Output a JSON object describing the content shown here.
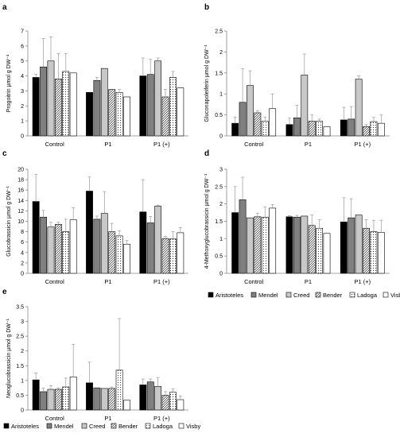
{
  "legend": {
    "items": [
      {
        "name": "Aristoteles",
        "fill": "#000000",
        "pattern": "solid"
      },
      {
        "name": "Mendel",
        "fill": "#808080",
        "pattern": "solid"
      },
      {
        "name": "Creed",
        "fill": "#c8c8c8",
        "pattern": "solid"
      },
      {
        "name": "Bender",
        "fill": "#ffffff",
        "pattern": "diagonal"
      },
      {
        "name": "Ladoga",
        "fill": "#ffffff",
        "pattern": "dots"
      },
      {
        "name": "Visby",
        "fill": "#ffffff",
        "pattern": "none"
      }
    ]
  },
  "chart_data": [
    {
      "panel": "a",
      "type": "bar",
      "ylabel": "Progoitrin µmol g DW⁻¹",
      "categories": [
        "Control",
        "P1",
        "P1 (+)"
      ],
      "ylim": [
        0,
        7
      ],
      "yticks": [
        0,
        1,
        2,
        3,
        4,
        5,
        6,
        7
      ],
      "tick_decimals": 0,
      "grid": false,
      "legend": "none",
      "series": [
        {
          "name": "Aristoteles",
          "values": [
            3.9,
            2.9,
            4.0
          ],
          "err": [
            0.2,
            0.0,
            1.2
          ]
        },
        {
          "name": "Mendel",
          "values": [
            4.6,
            3.7,
            4.1
          ],
          "err": [
            1.9,
            0.2,
            1.0
          ]
        },
        {
          "name": "Creed",
          "values": [
            5.0,
            4.5,
            5.0
          ],
          "err": [
            1.6,
            0.0,
            0.2
          ]
        },
        {
          "name": "Bender",
          "values": [
            3.8,
            3.1,
            2.6
          ],
          "err": [
            1.7,
            0.0,
            0.5
          ]
        },
        {
          "name": "Ladoga",
          "values": [
            4.3,
            2.9,
            3.9
          ],
          "err": [
            1.2,
            0.2,
            0.4
          ]
        },
        {
          "name": "Visby",
          "values": [
            4.2,
            2.6,
            3.2
          ],
          "err": [
            0.0,
            0.0,
            0.0
          ]
        }
      ]
    },
    {
      "panel": "b",
      "type": "bar",
      "ylabel": "Gluconapoleiferin µmol g DW⁻¹",
      "categories": [
        "Control",
        "P1",
        "P1 (+)"
      ],
      "ylim": [
        0,
        2.5
      ],
      "yticks": [
        0,
        0.5,
        1,
        1.5,
        2,
        2.5
      ],
      "tick_decimals": 1,
      "grid": false,
      "legend": "none",
      "series": [
        {
          "name": "Aristoteles",
          "values": [
            0.3,
            0.27,
            0.38
          ],
          "err": [
            0.15,
            0.15,
            0.3
          ]
        },
        {
          "name": "Mendel",
          "values": [
            0.8,
            0.43,
            0.4
          ],
          "err": [
            0.8,
            0.3,
            0.3
          ]
        },
        {
          "name": "Creed",
          "values": [
            1.2,
            1.45,
            1.35
          ],
          "err": [
            0.35,
            0.5,
            0.08
          ]
        },
        {
          "name": "Bender",
          "values": [
            0.55,
            0.35,
            0.22
          ],
          "err": [
            0.05,
            0.15,
            0.05
          ]
        },
        {
          "name": "Ladoga",
          "values": [
            0.35,
            0.35,
            0.34
          ],
          "err": [
            0.1,
            0.05,
            0.1
          ]
        },
        {
          "name": "Visby",
          "values": [
            0.65,
            0.22,
            0.3
          ],
          "err": [
            0.35,
            0.0,
            0.2
          ]
        }
      ]
    },
    {
      "panel": "c",
      "type": "bar",
      "ylabel": "Glucobrassicin µmol g DW⁻¹",
      "categories": [
        "Control",
        "P1",
        "P1 (+)"
      ],
      "ylim": [
        0,
        20
      ],
      "yticks": [
        0,
        2,
        4,
        6,
        8,
        10,
        12,
        14,
        16,
        18,
        20
      ],
      "tick_decimals": 0,
      "grid": false,
      "legend": "none",
      "series": [
        {
          "name": "Aristoteles",
          "values": [
            13.8,
            15.8,
            11.8
          ],
          "err": [
            5.2,
            2.7,
            6.2
          ]
        },
        {
          "name": "Mendel",
          "values": [
            10.8,
            10.4,
            9.7
          ],
          "err": [
            1.3,
            0.6,
            1.2
          ]
        },
        {
          "name": "Creed",
          "values": [
            8.9,
            11.5,
            12.9
          ],
          "err": [
            0.9,
            4.2,
            0.2
          ]
        },
        {
          "name": "Bender",
          "values": [
            9.4,
            8.0,
            6.7
          ],
          "err": [
            0.4,
            1.6,
            0.4
          ]
        },
        {
          "name": "Ladoga",
          "values": [
            8.0,
            7.2,
            6.6
          ],
          "err": [
            2.4,
            1.0,
            1.4
          ]
        },
        {
          "name": "Visby",
          "values": [
            10.3,
            5.6,
            7.8
          ],
          "err": [
            2.3,
            0.7,
            1.0
          ]
        }
      ]
    },
    {
      "panel": "d",
      "type": "bar",
      "ylabel": "4-Methoxyglucobrassicin µmol g DW⁻¹",
      "categories": [
        "Control",
        "P1",
        "P1 (+)"
      ],
      "ylim": [
        0,
        3
      ],
      "yticks": [
        0,
        0.5,
        1,
        1.5,
        2,
        2.5,
        3
      ],
      "tick_decimals": 1,
      "grid": false,
      "legend": "bottom",
      "series": [
        {
          "name": "Aristoteles",
          "values": [
            1.75,
            1.63,
            1.48
          ],
          "err": [
            0.75,
            0.03,
            0.7
          ]
        },
        {
          "name": "Mendel",
          "values": [
            2.12,
            1.62,
            1.6
          ],
          "err": [
            0.65,
            0.05,
            0.55
          ]
        },
        {
          "name": "Creed",
          "values": [
            1.6,
            1.65,
            1.68
          ],
          "err": [
            0.0,
            0.0,
            0.0
          ]
        },
        {
          "name": "Bender",
          "values": [
            1.63,
            1.38,
            1.3
          ],
          "err": [
            0.1,
            0.3,
            0.25
          ]
        },
        {
          "name": "Ladoga",
          "values": [
            1.62,
            1.3,
            1.2
          ],
          "err": [
            0.3,
            0.25,
            0.33
          ]
        },
        {
          "name": "Visby",
          "values": [
            1.88,
            1.15,
            1.18
          ],
          "err": [
            0.1,
            0.0,
            0.35
          ]
        }
      ]
    },
    {
      "panel": "e",
      "type": "bar",
      "ylabel": "Neoglucobrassicin µmol g DW⁻¹",
      "categories": [
        "Control",
        "P1",
        "P1 (+)"
      ],
      "ylim": [
        0,
        3.5
      ],
      "yticks": [
        0,
        0.5,
        1,
        1.5,
        2,
        2.5,
        3,
        3.5
      ],
      "tick_decimals": 1,
      "grid": false,
      "legend": "bottom",
      "series": [
        {
          "name": "Aristoteles",
          "values": [
            1.02,
            0.92,
            0.85
          ],
          "err": [
            0.23,
            0.7,
            0.2
          ]
        },
        {
          "name": "Mendel",
          "values": [
            0.62,
            0.75,
            0.95
          ],
          "err": [
            0.12,
            0.0,
            0.1
          ]
        },
        {
          "name": "Creed",
          "values": [
            0.7,
            0.73,
            0.8
          ],
          "err": [
            0.12,
            0.0,
            0.3
          ]
        },
        {
          "name": "Bender",
          "values": [
            0.7,
            0.73,
            0.5
          ],
          "err": [
            0.05,
            0.05,
            0.12
          ]
        },
        {
          "name": "Ladoga",
          "values": [
            0.78,
            1.35,
            0.6
          ],
          "err": [
            0.3,
            1.75,
            0.12
          ]
        },
        {
          "name": "Visby",
          "values": [
            1.12,
            0.33,
            0.35
          ],
          "err": [
            1.1,
            0.0,
            0.12
          ]
        }
      ]
    }
  ]
}
